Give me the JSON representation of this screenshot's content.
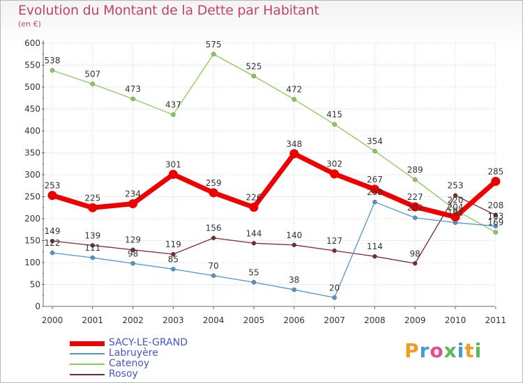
{
  "title": "Evolution du Montant de la Dette par Habitant",
  "subtitle": "(en €)",
  "logo": {
    "text": "Proxiti",
    "letters": [
      "P",
      "r",
      "o",
      "x",
      "i",
      "t",
      "i"
    ],
    "colors": [
      "#f29c1f",
      "#3e9bd6",
      "#e74c8c",
      "#5cb85c",
      "#3e9bd6",
      "#f29c1f",
      "#5cb85c"
    ]
  },
  "chart_data": {
    "type": "line",
    "x": [
      "2000",
      "2001",
      "2002",
      "2003",
      "2004",
      "2005",
      "2006",
      "2007",
      "2008",
      "2009",
      "2010",
      "2011"
    ],
    "ylim": [
      0,
      600
    ],
    "yticks": [
      "0",
      "50",
      "100",
      "150",
      "200",
      "250",
      "300",
      "350",
      "400",
      "450",
      "500",
      "550",
      "600"
    ],
    "grid": true,
    "legend_position": "bottom-left",
    "series": [
      {
        "name": "SACY-LE-GRAND",
        "color": "#ee0000",
        "values": [
          253,
          225,
          234,
          301,
          259,
          226,
          348,
          302,
          267,
          227,
          204,
          285
        ],
        "labels": [
          "253",
          "225",
          "234",
          "301",
          "259",
          "226",
          "348",
          "302",
          "267",
          "227",
          "204",
          "285"
        ]
      },
      {
        "name": "Labruyère",
        "color": "#4f94cf",
        "values": [
          122,
          111,
          98,
          85,
          70,
          55,
          38,
          20,
          238,
          202,
          191,
          183
        ],
        "labels": [
          "122",
          "111",
          "98",
          "85",
          "70",
          "55",
          "38",
          "20",
          "238",
          "202",
          "191",
          "183"
        ]
      },
      {
        "name": "Catenoy",
        "color": "#87cc54",
        "values": [
          538,
          507,
          473,
          437,
          575,
          525,
          472,
          415,
          354,
          289,
          220,
          169
        ],
        "labels": [
          "538",
          "507",
          "473",
          "437",
          "575",
          "525",
          "472",
          "415",
          "354",
          "289",
          "220",
          "169"
        ]
      },
      {
        "name": "Rosoy",
        "color": "#7a2a2a",
        "values": [
          149,
          139,
          129,
          119,
          156,
          144,
          140,
          127,
          114,
          98,
          253,
          208
        ],
        "labels": [
          "149",
          "139",
          "129",
          "119",
          "156",
          "144",
          "140",
          "127",
          "114",
          "98",
          "253",
          "208"
        ]
      }
    ]
  }
}
